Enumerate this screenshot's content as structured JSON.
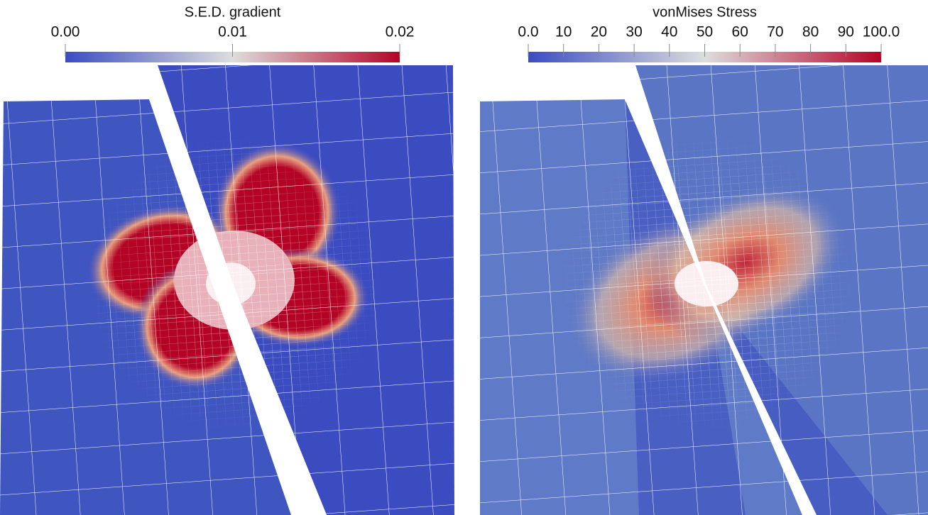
{
  "panels": [
    {
      "title": "S.E.D. gradient",
      "colorbar": {
        "lim": [
          0,
          0.02
        ],
        "ticks": [
          {
            "value": 0,
            "label": "0.00"
          },
          0.01,
          0.02
        ],
        "colors": [
          "#3b4cc0",
          "#dddddd",
          "#b40426"
        ]
      }
    },
    {
      "title": "vonMises Stress",
      "colorbar": {
        "lim": [
          0,
          100
        ],
        "ticks": [
          {
            "value": 0,
            "label": "0.0"
          },
          10,
          20,
          30,
          40,
          50,
          60,
          70,
          80,
          90,
          {
            "value": 100,
            "label": "100.0"
          }
        ],
        "colors": [
          "#3b4cc0",
          "#dddddd",
          "#b40426"
        ]
      }
    }
  ]
}
